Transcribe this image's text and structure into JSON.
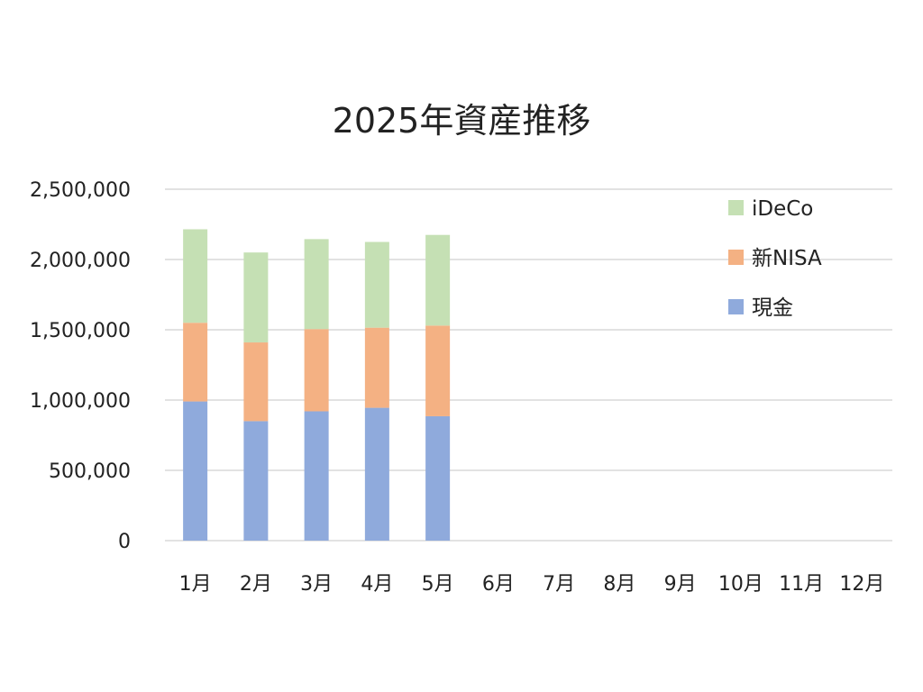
{
  "chart_data": {
    "type": "bar",
    "stacked": true,
    "title": "2025年資産推移",
    "xlabel": "",
    "ylabel": "",
    "categories": [
      "1月",
      "2月",
      "3月",
      "4月",
      "5月",
      "6月",
      "7月",
      "8月",
      "9月",
      "10月",
      "11月",
      "12月"
    ],
    "ylim": [
      0,
      2500000
    ],
    "yticks": [
      0,
      500000,
      1000000,
      1500000,
      2000000,
      2500000
    ],
    "ytick_labels": [
      "0",
      "500,000",
      "1,000,000",
      "1,500,000",
      "2,000,000",
      "2,500,000"
    ],
    "grid": true,
    "legend_position": "top-right",
    "series": [
      {
        "name": "現金",
        "color": "#8faadc",
        "values": [
          990000,
          850000,
          920000,
          945000,
          885000,
          null,
          null,
          null,
          null,
          null,
          null,
          null
        ]
      },
      {
        "name": "新NISA",
        "color": "#f4b183",
        "values": [
          560000,
          560000,
          585000,
          570000,
          645000,
          null,
          null,
          null,
          null,
          null,
          null,
          null
        ]
      },
      {
        "name": "iDeCo",
        "color": "#c5e0b4",
        "values": [
          665000,
          640000,
          640000,
          610000,
          645000,
          null,
          null,
          null,
          null,
          null,
          null,
          null
        ]
      }
    ]
  }
}
